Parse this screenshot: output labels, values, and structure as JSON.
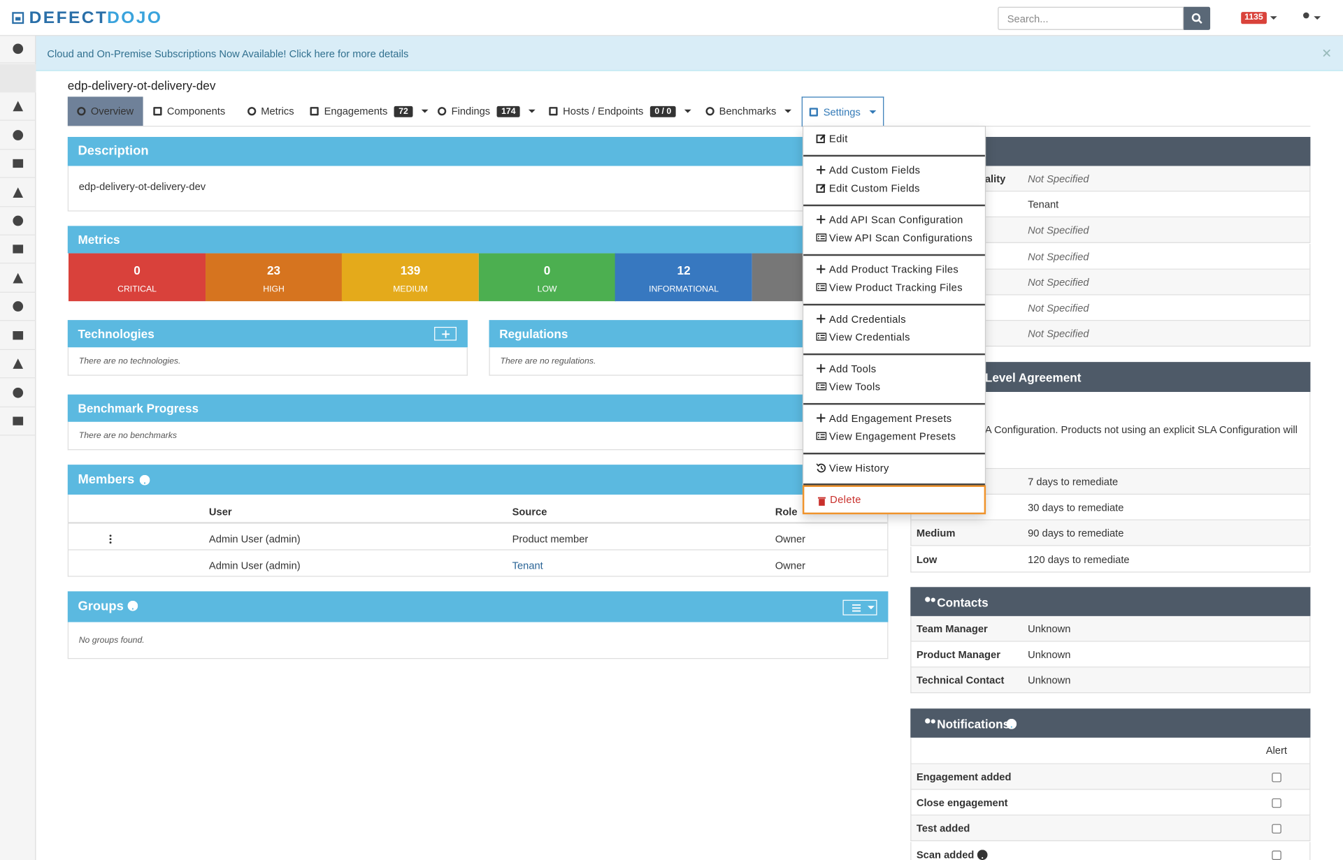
{
  "header": {
    "logo": [
      "DEFECT",
      "DOJO"
    ],
    "search_placeholder": "Search...",
    "alert_count": "1135"
  },
  "banner": "Cloud and On-Premise Subscriptions Now Available! Click here for more details",
  "product_name": "edp-delivery-ot-delivery-dev",
  "tabs": [
    {
      "label": "Overview"
    },
    {
      "label": "Components"
    },
    {
      "label": "Metrics"
    },
    {
      "label": "Engagements",
      "badge": "72"
    },
    {
      "label": "Findings",
      "badge": "174"
    },
    {
      "label": "Hosts / Endpoints",
      "badge": "0 / 0"
    },
    {
      "label": "Benchmarks"
    },
    {
      "label": "Settings"
    }
  ],
  "settings_menu": [
    "Edit",
    "Add Custom Fields",
    "Edit Custom Fields",
    "Add API Scan Configuration",
    "View API Scan Configurations",
    "Add Product Tracking Files",
    "View Product Tracking Files",
    "Add Credentials",
    "View Credentials",
    "Add Tools",
    "View Tools",
    "Add Engagement Presets",
    "View Engagement Presets",
    "View History",
    "Delete"
  ],
  "description": {
    "title": "Description",
    "text": "edp-delivery-ot-delivery-dev"
  },
  "metrics": {
    "title": "Metrics",
    "items": [
      {
        "value": 0,
        "label": "CRITICAL"
      },
      {
        "value": 23,
        "label": "HIGH"
      },
      {
        "value": 139,
        "label": "MEDIUM"
      },
      {
        "value": 0,
        "label": "LOW"
      },
      {
        "value": 12,
        "label": "INFORMATIONAL"
      }
    ]
  },
  "technologies": {
    "title": "Technologies",
    "empty": "There are no technologies."
  },
  "regulations": {
    "title": "Regulations",
    "empty": "There are no regulations."
  },
  "benchmark_progress": {
    "title": "Benchmark Progress",
    "empty": "There are no benchmarks"
  },
  "members": {
    "title": "Members",
    "columns": [
      "User",
      "Source",
      "Role"
    ],
    "rows": [
      [
        "Admin User (admin)",
        "Product member",
        "Owner"
      ],
      [
        "Admin User (admin)",
        "Tenant",
        "Owner"
      ]
    ]
  },
  "groups": {
    "title": "Groups",
    "empty": "No groups found."
  },
  "product_info": {
    "rows": [
      {
        "label": "ality",
        "value": "Not Specified"
      },
      {
        "value": "Tenant"
      },
      {
        "value": "Not Specified"
      },
      {
        "value": "Not Specified"
      },
      {
        "value": "Not Specified"
      },
      {
        "value": "Not Specified"
      },
      {
        "value": "Not Specified"
      }
    ]
  },
  "sla": {
    "title": "Level Agreement",
    "text": "A Configuration. Products not using an explicit SLA Configuration will",
    "rows": [
      {
        "value": "7 days to remediate"
      },
      {
        "value": "30 days to remediate"
      },
      {
        "label": "Medium",
        "value": "90 days to remediate"
      },
      {
        "label": "Low",
        "value": "120 days to remediate"
      }
    ]
  },
  "contacts": {
    "title": "Contacts",
    "rows": [
      {
        "label": "Team Manager",
        "value": "Unknown"
      },
      {
        "label": "Product Manager",
        "value": "Unknown"
      },
      {
        "label": "Technical Contact",
        "value": "Unknown"
      }
    ]
  },
  "notifications": {
    "title": "Notifications",
    "column": "Alert",
    "rows": [
      "Engagement added",
      "Close engagement",
      "Test added",
      "Scan added"
    ]
  }
}
